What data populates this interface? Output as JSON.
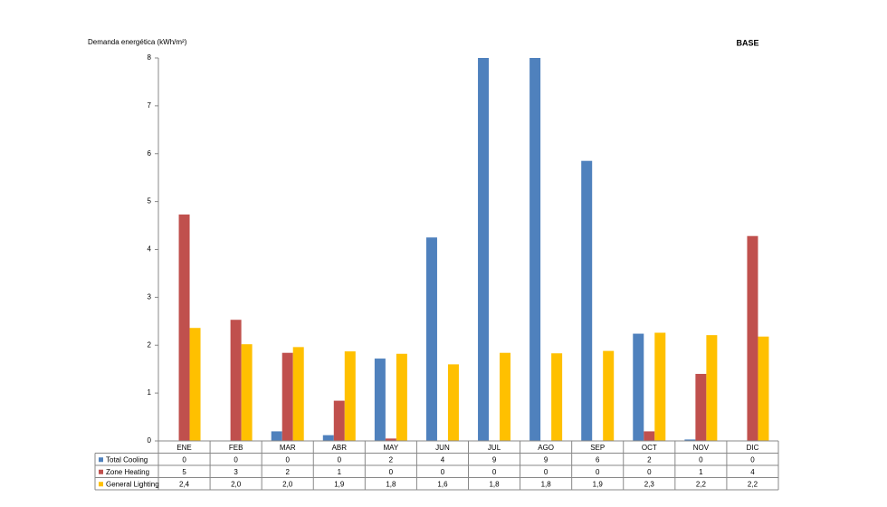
{
  "chart_data": {
    "type": "bar",
    "title": "BASE",
    "y_label": "Demanda energética (kWh/m²)",
    "categories": [
      "ENE",
      "FEB",
      "MAR",
      "ABR",
      "MAY",
      "JUN",
      "JUL",
      "AGO",
      "SEP",
      "OCT",
      "NOV",
      "DIC"
    ],
    "series": [
      {
        "name": "Total Cooling",
        "color": "#4f81bd",
        "values": [
          0,
          0,
          0.2,
          0.12,
          1.72,
          4.25,
          9,
          9,
          5.85,
          2.24,
          0.03,
          0
        ],
        "value_labels": [
          "0",
          "0",
          "0",
          "0",
          "2",
          "4",
          "9",
          "9",
          "6",
          "2",
          "0",
          "0"
        ]
      },
      {
        "name": "Zone Heating",
        "color": "#c0504d",
        "values": [
          4.73,
          2.53,
          1.84,
          0.84,
          0.05,
          0,
          0,
          0,
          0,
          0.2,
          1.4,
          4.28
        ],
        "value_labels": [
          "5",
          "3",
          "2",
          "1",
          "0",
          "0",
          "0",
          "0",
          "0",
          "0",
          "1",
          "4"
        ]
      },
      {
        "name": "General Lighting",
        "color": "#ffc000",
        "values": [
          2.36,
          2.02,
          1.96,
          1.87,
          1.82,
          1.6,
          1.84,
          1.83,
          1.88,
          2.26,
          2.21,
          2.18
        ],
        "value_labels": [
          "2,4",
          "2,0",
          "2,0",
          "1,9",
          "1,8",
          "1,6",
          "1,8",
          "1,8",
          "1,9",
          "2,3",
          "2,2",
          "2,2"
        ]
      }
    ],
    "ylim": [
      0,
      8
    ],
    "yticks": [
      0,
      1,
      2,
      3,
      4,
      5,
      6,
      7,
      8
    ],
    "grid": false
  }
}
